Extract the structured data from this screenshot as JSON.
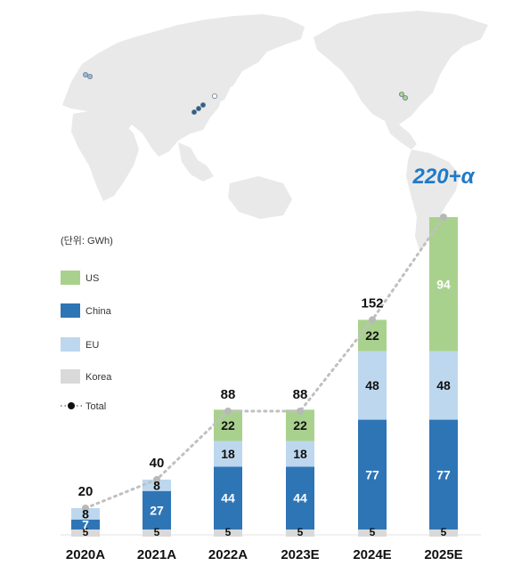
{
  "unit_label": "(단위: GWh)",
  "highlight_label": "220+α",
  "colors": {
    "US": "#a9d18e",
    "China": "#2e75b6",
    "EU": "#bdd7ee",
    "Korea": "#d9d9d9",
    "total_line": "#c0c0c0",
    "total_marker": "#b8b8b8",
    "map": "#e9e9e9",
    "highlight": "#1f7ac8"
  },
  "legend": [
    {
      "key": "US",
      "label": "US",
      "type": "swatch"
    },
    {
      "key": "China",
      "label": "China",
      "type": "swatch"
    },
    {
      "key": "EU",
      "label": "EU",
      "type": "swatch"
    },
    {
      "key": "Korea",
      "label": "Korea",
      "type": "swatch"
    },
    {
      "key": "Total",
      "label": "Total",
      "type": "line"
    }
  ],
  "chart_data": {
    "type": "bar",
    "stacked": true,
    "categories": [
      "2020A",
      "2021A",
      "2022A",
      "2023E",
      "2024E",
      "2025E"
    ],
    "series": [
      {
        "name": "Korea",
        "values": [
          5,
          5,
          5,
          5,
          5,
          5
        ]
      },
      {
        "name": "China",
        "values": [
          7,
          27,
          44,
          44,
          77,
          77
        ]
      },
      {
        "name": "EU",
        "values": [
          8,
          8,
          18,
          18,
          48,
          48
        ]
      },
      {
        "name": "US",
        "values": [
          0,
          0,
          22,
          22,
          22,
          94
        ]
      }
    ],
    "total": {
      "name": "Total",
      "values": [
        20,
        40,
        88,
        88,
        152,
        224
      ],
      "labels": [
        "20",
        "40",
        "88",
        "88",
        "152",
        ""
      ]
    },
    "ylim": [
      0,
      224
    ],
    "legend_position": "left",
    "grid": false
  }
}
